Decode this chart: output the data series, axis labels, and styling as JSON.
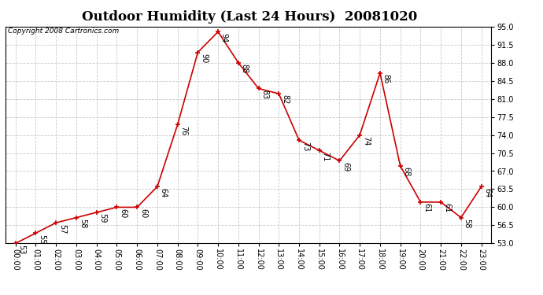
{
  "title": "Outdoor Humidity (Last 24 Hours)  20081020",
  "copyright": "Copyright 2008 Cartronics.com",
  "hours": [
    "00:00",
    "01:00",
    "02:00",
    "03:00",
    "04:00",
    "05:00",
    "06:00",
    "07:00",
    "08:00",
    "09:00",
    "10:00",
    "11:00",
    "12:00",
    "13:00",
    "14:00",
    "15:00",
    "16:00",
    "17:00",
    "18:00",
    "19:00",
    "20:00",
    "21:00",
    "22:00",
    "23:00"
  ],
  "values": [
    53,
    55,
    57,
    58,
    59,
    60,
    60,
    64,
    76,
    90,
    94,
    88,
    83,
    82,
    73,
    71,
    69,
    74,
    86,
    68,
    61,
    61,
    58,
    64
  ],
  "ylim": [
    53.0,
    95.0
  ],
  "yticks": [
    53.0,
    56.5,
    60.0,
    63.5,
    67.0,
    70.5,
    74.0,
    77.5,
    81.0,
    84.5,
    88.0,
    91.5,
    95.0
  ],
  "line_color": "#cc0000",
  "marker_color": "#cc0000",
  "bg_color": "#ffffff",
  "plot_bg_color": "#ffffff",
  "grid_color": "#c8c8c8",
  "title_fontsize": 12,
  "label_fontsize": 7,
  "tick_fontsize": 7,
  "copyright_fontsize": 6.5
}
